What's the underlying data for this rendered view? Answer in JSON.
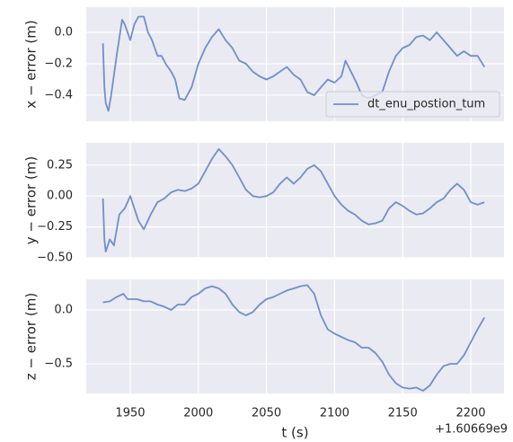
{
  "chart_data": [
    {
      "type": "line",
      "ylabel": "x − error (m)",
      "legend": "lower right",
      "grid": true,
      "xlim": [
        1917.7,
        2224.4
      ],
      "xticks": [
        1950,
        2000,
        2050,
        2100,
        2150,
        2200
      ],
      "ylim": [
        -0.566,
        0.16
      ],
      "yticks": [
        {
          "value": 0,
          "label": "0.0"
        },
        {
          "value": -0.2,
          "label": "−0.2"
        },
        {
          "value": -0.4,
          "label": "−0.4"
        }
      ],
      "x": [
        1930,
        1931,
        1932,
        1934,
        1936,
        1940,
        1944,
        1946,
        1950,
        1953,
        1956,
        1960,
        1963,
        1966,
        1970,
        1973,
        1976,
        1980,
        1983,
        1986,
        1990,
        1995,
        2000,
        2005,
        2010,
        2015,
        2020,
        2025,
        2030,
        2035,
        2040,
        2045,
        2050,
        2055,
        2060,
        2065,
        2070,
        2075,
        2080,
        2085,
        2090,
        2095,
        2100,
        2105,
        2108,
        2112,
        2116,
        2120,
        2125,
        2130,
        2135,
        2140,
        2145,
        2150,
        2155,
        2160,
        2165,
        2170,
        2175,
        2180,
        2185,
        2190,
        2195,
        2200,
        2205,
        2210
      ],
      "series": [
        {
          "name": "dt_enu_postion_tum",
          "color": "#6f8fcb",
          "values": [
            -0.07,
            -0.35,
            -0.45,
            -0.5,
            -0.4,
            -0.15,
            0.08,
            0.05,
            -0.05,
            0.05,
            0.1,
            0.1,
            0.0,
            -0.05,
            -0.15,
            -0.15,
            -0.2,
            -0.25,
            -0.3,
            -0.42,
            -0.43,
            -0.35,
            -0.2,
            -0.1,
            -0.03,
            0.02,
            -0.05,
            -0.1,
            -0.18,
            -0.2,
            -0.25,
            -0.28,
            -0.3,
            -0.28,
            -0.25,
            -0.22,
            -0.27,
            -0.3,
            -0.38,
            -0.4,
            -0.35,
            -0.3,
            -0.32,
            -0.28,
            -0.18,
            -0.25,
            -0.32,
            -0.4,
            -0.42,
            -0.4,
            -0.38,
            -0.25,
            -0.15,
            -0.1,
            -0.08,
            -0.03,
            -0.02,
            -0.05,
            0.0,
            -0.05,
            -0.1,
            -0.15,
            -0.12,
            -0.15,
            -0.15,
            -0.22
          ]
        }
      ]
    },
    {
      "type": "line",
      "ylabel": "y − error (m)",
      "grid": true,
      "xlim": [
        1917.7,
        2224.4
      ],
      "xticks": [
        1950,
        2000,
        2050,
        2100,
        2150,
        2200
      ],
      "ylim": [
        -0.5,
        0.43
      ],
      "yticks": [
        0.25,
        {
          "value": 0,
          "label": "0.00"
        },
        {
          "value": -0.25,
          "label": "−0.25"
        },
        {
          "value": -0.5,
          "label": "−0.50"
        }
      ],
      "x": [
        1930,
        1931,
        1932,
        1935,
        1938,
        1942,
        1946,
        1950,
        1953,
        1956,
        1960,
        1965,
        1970,
        1975,
        1980,
        1985,
        1990,
        1995,
        2000,
        2005,
        2010,
        2015,
        2020,
        2025,
        2030,
        2035,
        2040,
        2045,
        2050,
        2055,
        2060,
        2065,
        2070,
        2075,
        2080,
        2085,
        2090,
        2095,
        2100,
        2105,
        2110,
        2115,
        2120,
        2125,
        2130,
        2135,
        2140,
        2145,
        2150,
        2155,
        2160,
        2165,
        2170,
        2175,
        2180,
        2185,
        2190,
        2195,
        2200,
        2205,
        2210
      ],
      "series": [
        {
          "name": "dt_enu_postion_tum",
          "color": "#6f8fcb",
          "values": [
            -0.02,
            -0.35,
            -0.45,
            -0.35,
            -0.4,
            -0.15,
            -0.1,
            0.0,
            -0.1,
            -0.2,
            -0.27,
            -0.15,
            -0.05,
            -0.02,
            0.03,
            0.05,
            0.04,
            0.06,
            0.1,
            0.2,
            0.3,
            0.38,
            0.32,
            0.25,
            0.15,
            0.05,
            0.0,
            -0.01,
            0.0,
            0.03,
            0.1,
            0.15,
            0.1,
            0.15,
            0.22,
            0.25,
            0.2,
            0.1,
            0.0,
            -0.07,
            -0.12,
            -0.15,
            -0.2,
            -0.23,
            -0.22,
            -0.2,
            -0.1,
            -0.05,
            -0.08,
            -0.12,
            -0.15,
            -0.14,
            -0.1,
            -0.05,
            -0.02,
            0.05,
            0.1,
            0.05,
            -0.05,
            -0.07,
            -0.05
          ]
        }
      ]
    },
    {
      "type": "line",
      "ylabel": "z − error (m)",
      "xlabel": "t (s)",
      "x_offset_label": "+1.60669e9",
      "grid": true,
      "xlim": [
        1917.7,
        2224.4
      ],
      "xticks": [
        1950,
        2000,
        2050,
        2100,
        2150,
        2200
      ],
      "ylim": [
        -0.775,
        0.283
      ],
      "yticks": [
        {
          "value": 0,
          "label": "0.0"
        },
        {
          "value": -0.5,
          "label": "−0.5"
        }
      ],
      "x": [
        1930,
        1935,
        1940,
        1945,
        1948,
        1950,
        1955,
        1960,
        1965,
        1970,
        1975,
        1980,
        1985,
        1990,
        1995,
        2000,
        2005,
        2010,
        2015,
        2020,
        2025,
        2030,
        2035,
        2040,
        2045,
        2050,
        2055,
        2060,
        2065,
        2070,
        2075,
        2080,
        2085,
        2090,
        2095,
        2100,
        2105,
        2110,
        2115,
        2120,
        2125,
        2130,
        2135,
        2140,
        2145,
        2150,
        2155,
        2160,
        2165,
        2170,
        2175,
        2180,
        2185,
        2190,
        2195,
        2200,
        2205,
        2210
      ],
      "series": [
        {
          "name": "dt_enu_postion_tum",
          "color": "#6f8fcb",
          "values": [
            0.07,
            0.08,
            0.12,
            0.15,
            0.1,
            0.1,
            0.1,
            0.08,
            0.08,
            0.05,
            0.03,
            0.0,
            0.05,
            0.05,
            0.12,
            0.15,
            0.2,
            0.22,
            0.2,
            0.15,
            0.05,
            -0.02,
            -0.05,
            -0.02,
            0.05,
            0.1,
            0.12,
            0.15,
            0.18,
            0.2,
            0.22,
            0.23,
            0.15,
            -0.05,
            -0.18,
            -0.22,
            -0.25,
            -0.28,
            -0.3,
            -0.35,
            -0.35,
            -0.4,
            -0.48,
            -0.6,
            -0.68,
            -0.72,
            -0.73,
            -0.72,
            -0.75,
            -0.7,
            -0.6,
            -0.52,
            -0.5,
            -0.5,
            -0.42,
            -0.3,
            -0.18,
            -0.07
          ]
        }
      ]
    }
  ]
}
